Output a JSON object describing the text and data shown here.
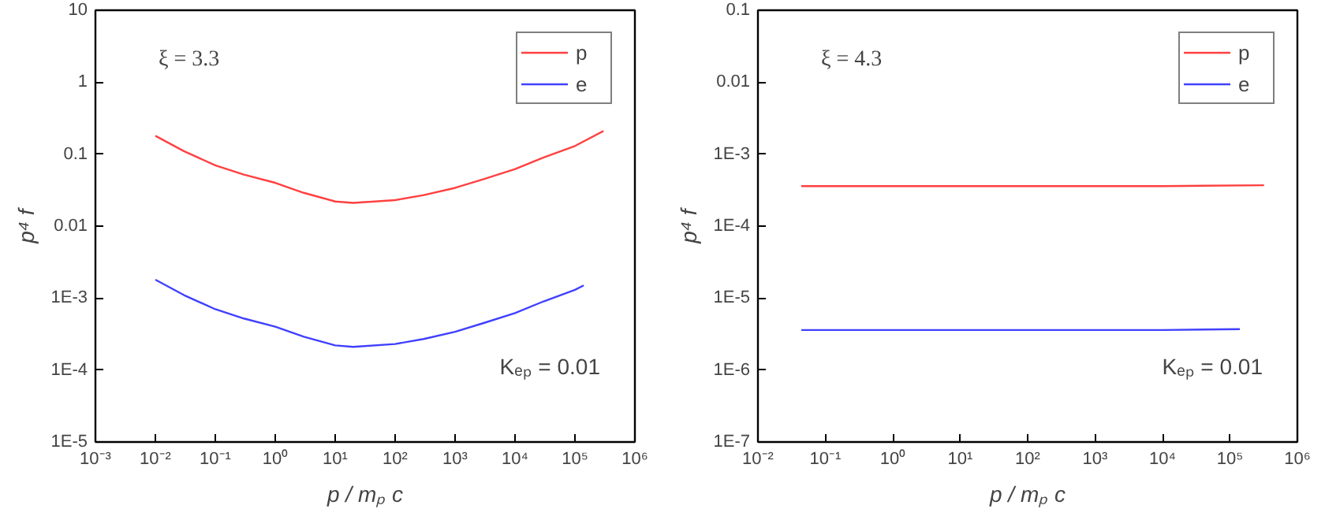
{
  "chart_data": [
    {
      "type": "line",
      "xlabel": "p / mₚ c",
      "ylabel": "p⁴ f",
      "log": "xy",
      "legend": "top right",
      "grid": false,
      "annotations": [
        "ξ = 3.3",
        "Kₑₚ = 0.01"
      ],
      "xlim": [
        0.001,
        1000000
      ],
      "ylim": [
        1e-05,
        10
      ],
      "xticks": [
        {
          "value": 0.001,
          "label": "10⁻³"
        },
        {
          "value": 0.01,
          "label": "10⁻²"
        },
        {
          "value": 0.1,
          "label": "10⁻¹"
        },
        {
          "value": 1,
          "label": "10⁰"
        },
        {
          "value": 10,
          "label": "10¹"
        },
        {
          "value": 100,
          "label": "10²"
        },
        {
          "value": 1000,
          "label": "10³"
        },
        {
          "value": 10000,
          "label": "10⁴"
        },
        {
          "value": 100000,
          "label": "10⁵"
        },
        {
          "value": 1000000,
          "label": "10⁶"
        }
      ],
      "yticks": [
        {
          "value": 1e-05,
          "label": "1E-5"
        },
        {
          "value": 0.0001,
          "label": "1E-4"
        },
        {
          "value": 0.001,
          "label": "1E-3"
        },
        0.01,
        0.1,
        1,
        10
      ],
      "series": [
        {
          "name": "p",
          "color": "#ff4040",
          "x": [
            0.01,
            0.03,
            0.1,
            0.3,
            1,
            3,
            10,
            20,
            100,
            300,
            1000,
            3000,
            10000,
            30000,
            100000,
            300000
          ],
          "values": [
            0.18,
            0.11,
            0.07,
            0.052,
            0.04,
            0.029,
            0.022,
            0.021,
            0.023,
            0.027,
            0.034,
            0.045,
            0.062,
            0.09,
            0.13,
            0.21
          ]
        },
        {
          "name": "e",
          "color": "#4040ff",
          "x": [
            0.01,
            0.03,
            0.1,
            0.3,
            1,
            3,
            10,
            20,
            100,
            300,
            1000,
            3000,
            10000,
            30000,
            100000,
            140000
          ],
          "values": [
            0.0018,
            0.0011,
            0.0007,
            0.00052,
            0.0004,
            0.00029,
            0.00022,
            0.00021,
            0.00023,
            0.00027,
            0.00034,
            0.00045,
            0.00062,
            0.0009,
            0.0013,
            0.0015
          ]
        }
      ]
    },
    {
      "type": "line",
      "xlabel": "p / mₚ c",
      "ylabel": "p⁴ f",
      "log": "xy",
      "legend": "top right",
      "grid": false,
      "annotations": [
        "ξ = 4.3",
        "Kₑₚ = 0.01"
      ],
      "xlim": [
        0.01,
        1000000
      ],
      "ylim": [
        1e-07,
        0.1
      ],
      "xticks": [
        {
          "value": 0.01,
          "label": "10⁻²"
        },
        {
          "value": 0.1,
          "label": "10⁻¹"
        },
        {
          "value": 1,
          "label": "10⁰"
        },
        {
          "value": 10,
          "label": "10¹"
        },
        {
          "value": 100,
          "label": "10²"
        },
        {
          "value": 1000,
          "label": "10³"
        },
        {
          "value": 10000,
          "label": "10⁴"
        },
        {
          "value": 100000,
          "label": "10⁵"
        },
        {
          "value": 1000000,
          "label": "10⁶"
        }
      ],
      "yticks": [
        {
          "value": 1e-07,
          "label": "1E-7"
        },
        {
          "value": 1e-06,
          "label": "1E-6"
        },
        {
          "value": 1e-05,
          "label": "1E-5"
        },
        {
          "value": 0.0001,
          "label": "1E-4"
        },
        {
          "value": 0.001,
          "label": "1E-3"
        },
        0.01,
        0.1
      ],
      "series": [
        {
          "name": "p",
          "color": "#ff4040",
          "x": [
            0.044,
            1,
            100,
            10000,
            320000
          ],
          "values": [
            0.00036,
            0.00036,
            0.00036,
            0.00036,
            0.00037
          ]
        },
        {
          "name": "e",
          "color": "#4040ff",
          "x": [
            0.044,
            1,
            100,
            10000,
            140000
          ],
          "values": [
            3.6e-06,
            3.6e-06,
            3.6e-06,
            3.6e-06,
            3.7e-06
          ]
        }
      ]
    }
  ]
}
